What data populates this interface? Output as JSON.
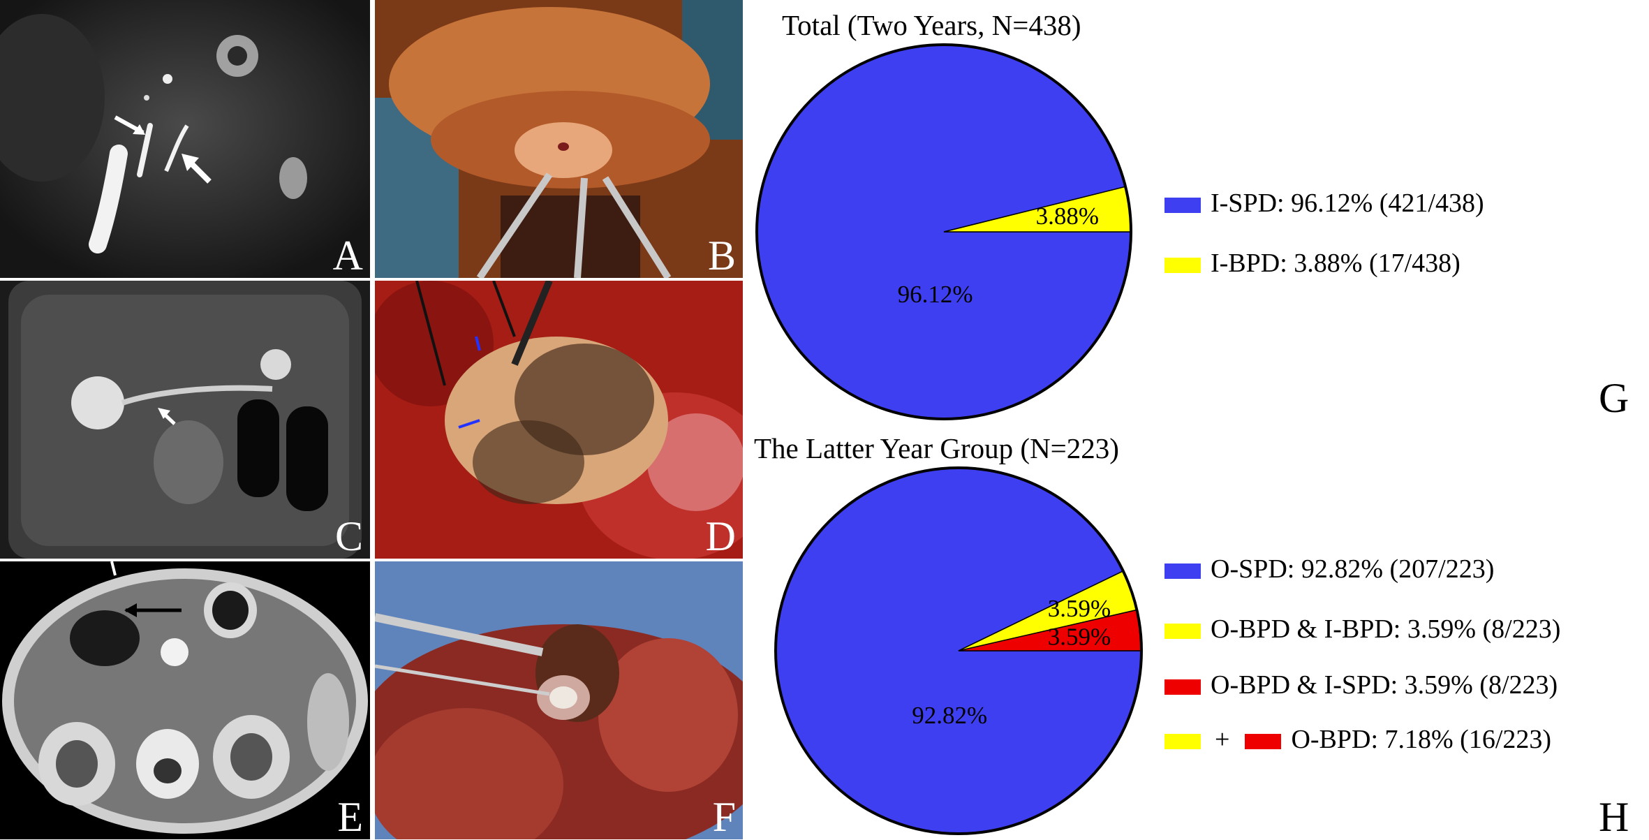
{
  "panels": [
    {
      "letter": "A"
    },
    {
      "letter": "B"
    },
    {
      "letter": "C"
    },
    {
      "letter": "D"
    },
    {
      "letter": "E"
    },
    {
      "letter": "F"
    }
  ],
  "colors": {
    "blue": "#3f3ff2",
    "yellow": "#ffff00",
    "red": "#ee0000"
  },
  "chart_data": [
    {
      "type": "pie",
      "title": "Total (Two Years, N=438)",
      "panel_label": "G",
      "slices": [
        {
          "name": "I-SPD",
          "value": 96.12,
          "label": "96.12%",
          "color": "#3f3ff2"
        },
        {
          "name": "I-BPD",
          "value": 3.88,
          "label": "3.88%",
          "color": "#ffff00"
        }
      ],
      "legend": [
        {
          "text": "I-SPD: 96.12% (421/438)",
          "color": "#3f3ff2"
        },
        {
          "text": "I-BPD: 3.88% (17/438)",
          "color": "#ffff00"
        }
      ]
    },
    {
      "type": "pie",
      "title": "The Latter Year Group (N=223)",
      "panel_label": "H",
      "slices": [
        {
          "name": "O-SPD",
          "value": 92.82,
          "label": "92.82%",
          "color": "#3f3ff2"
        },
        {
          "name": "O-BPD & I-BPD",
          "value": 3.59,
          "label": "3.59%",
          "color": "#ffff00"
        },
        {
          "name": "O-BPD & I-SPD",
          "value": 3.59,
          "label": "3.59%",
          "color": "#ee0000"
        }
      ],
      "legend": [
        {
          "text": "O-SPD: 92.82% (207/223)",
          "colors": [
            "#3f3ff2"
          ]
        },
        {
          "text": "O-BPD & I-BPD: 3.59% (8/223)",
          "colors": [
            "#ffff00"
          ]
        },
        {
          "text": "O-BPD & I-SPD: 3.59% (8/223)",
          "colors": [
            "#ee0000"
          ]
        },
        {
          "text": "O-BPD: 7.18% (16/223)",
          "colors": [
            "#ffff00",
            "#ee0000"
          ],
          "joiner": "+"
        }
      ]
    }
  ]
}
